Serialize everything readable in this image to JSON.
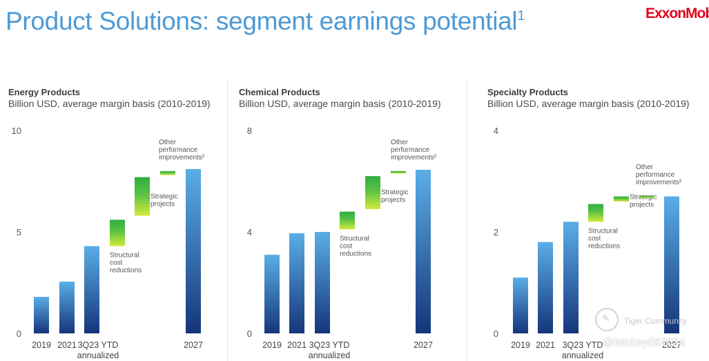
{
  "header": {
    "title": "Product Solutions: segment earnings potential",
    "title_sup": "1",
    "logo": "ExxonMobil"
  },
  "watermark": {
    "line1": "Tiger Community",
    "line2": "@Mickey082024"
  },
  "colors": {
    "accent": "#4d9ad6",
    "bar_top": "#5aaee6",
    "bar_bottom": "#15357a",
    "green_light": "#d4ea3a",
    "green_dark": "#2fae3f"
  },
  "chart_data": [
    {
      "type": "bar",
      "title": "Energy Products",
      "subtitle": "Billion USD, average margin basis (2010-2019)",
      "ylim": [
        0,
        10
      ],
      "yticks": [
        "0",
        "5",
        "10"
      ],
      "bars": [
        {
          "label": "2019",
          "kind": "total",
          "value": 1.8
        },
        {
          "label": "2021",
          "kind": "total",
          "value": 2.55
        },
        {
          "label": "3Q23 YTD annualized",
          "kind": "total",
          "value": 4.3
        },
        {
          "label": "Structural cost reductions",
          "kind": "step",
          "from": 4.3,
          "to": 5.6
        },
        {
          "label": "Strategic projects",
          "kind": "step",
          "from": 5.8,
          "to": 7.7
        },
        {
          "label": "Other performance improvements²",
          "kind": "step",
          "from": 7.8,
          "to": 8.0
        },
        {
          "label": "2027",
          "kind": "total",
          "value": 8.1
        }
      ]
    },
    {
      "type": "bar",
      "title": "Chemical Products",
      "subtitle": "Billion USD, average margin basis (2010-2019)",
      "ylim": [
        0,
        8
      ],
      "yticks": [
        "0",
        "4",
        "8"
      ],
      "bars": [
        {
          "label": "2019",
          "kind": "total",
          "value": 3.1
        },
        {
          "label": "2021",
          "kind": "total",
          "value": 3.95
        },
        {
          "label": "3Q23 YTD annualized",
          "kind": "total",
          "value": 4.0
        },
        {
          "label": "Structural cost reductions",
          "kind": "step",
          "from": 4.1,
          "to": 4.8
        },
        {
          "label": "Strategic projects",
          "kind": "step",
          "from": 4.9,
          "to": 6.2
        },
        {
          "label": "Other performance improvements²",
          "kind": "step",
          "from": 6.3,
          "to": 6.4
        },
        {
          "label": "2027",
          "kind": "total",
          "value": 6.45
        }
      ]
    },
    {
      "type": "bar",
      "title": "Specialty Products",
      "subtitle": "Billion USD, average margin basis (2010-2019)",
      "ylim": [
        0,
        4
      ],
      "yticks": [
        "0",
        "2",
        "4"
      ],
      "bars": [
        {
          "label": "2019",
          "kind": "total",
          "value": 1.1
        },
        {
          "label": "2021",
          "kind": "total",
          "value": 1.8
        },
        {
          "label": "3Q23 YTD annualized",
          "kind": "total",
          "value": 2.2
        },
        {
          "label": "Structural cost reductions",
          "kind": "step",
          "from": 2.2,
          "to": 2.55
        },
        {
          "label": "Strategic projects",
          "kind": "step",
          "from": 2.6,
          "to": 2.7
        },
        {
          "label": "Other performance improvements²",
          "kind": "step",
          "from": 2.69,
          "to": 2.71
        },
        {
          "label": "2027",
          "kind": "total",
          "value": 2.7
        }
      ]
    }
  ]
}
